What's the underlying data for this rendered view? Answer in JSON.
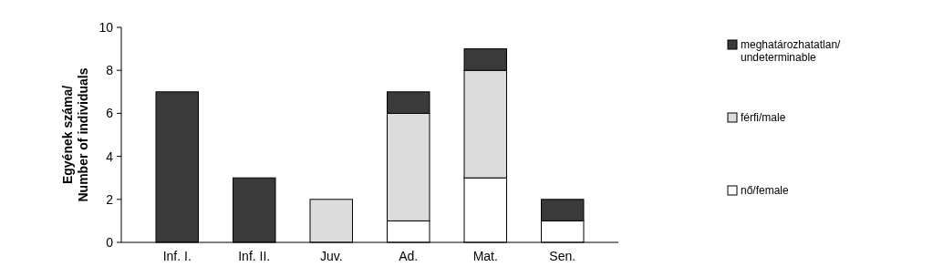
{
  "chart_data": {
    "type": "bar",
    "stacked": true,
    "ylabel": "Egyének száma/ Number of individuals",
    "categories": [
      "Inf. I.",
      "Inf. II.",
      "Juv.",
      "Ad.",
      "Mat.",
      "Sen."
    ],
    "series": [
      {
        "name": "nő/female",
        "color": "#ffffff",
        "values": [
          null,
          null,
          null,
          1,
          3,
          1
        ]
      },
      {
        "name": "férfi/male",
        "color": "#dcdcdc",
        "values": [
          null,
          null,
          2,
          5,
          5,
          null
        ]
      },
      {
        "name": "meghatározhatatlan/undeterminable",
        "color": "#3a3a3a",
        "values": [
          7,
          3,
          null,
          1,
          1,
          1
        ]
      }
    ],
    "ylim": [
      0,
      10
    ],
    "yticks": [
      0,
      2,
      4,
      6,
      8,
      10
    ],
    "legend": "right",
    "grid": false
  }
}
